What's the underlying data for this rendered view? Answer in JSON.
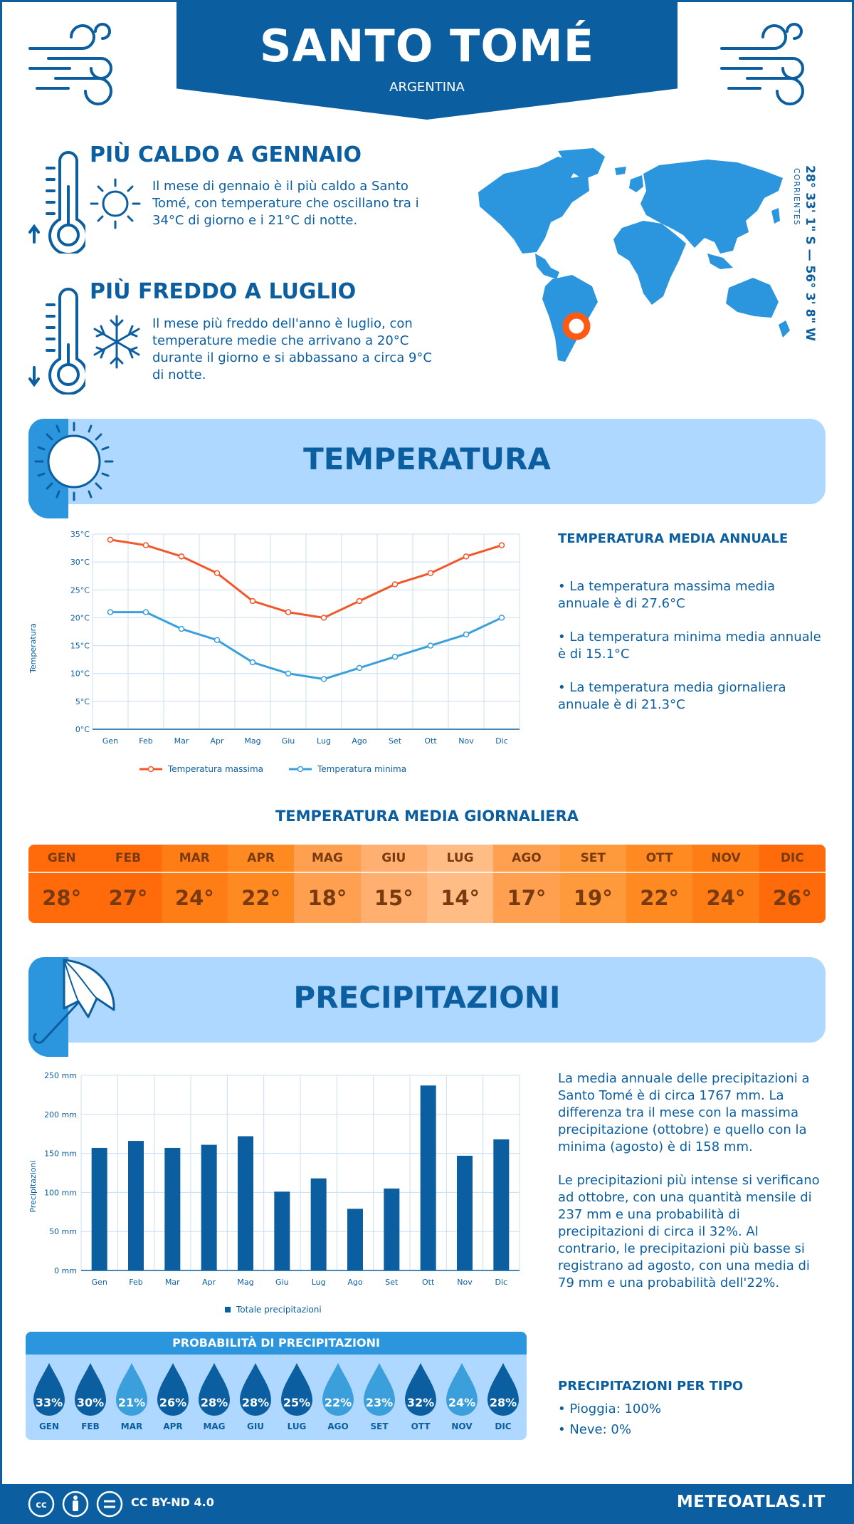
{
  "header": {
    "city": "SANTO TOMÉ",
    "country": "ARGENTINA"
  },
  "coordinates": {
    "text": "28° 33' 1\" S — 56° 3' 8\" W",
    "region": "CORRIENTES"
  },
  "highlights": {
    "hottest": {
      "title": "PIÙ CALDO A GENNAIO",
      "text": "Il mese di gennaio è il più caldo a Santo Tomé, con temperature che oscillano tra i 34°C di giorno e i 21°C di notte."
    },
    "coldest": {
      "title": "PIÙ FREDDO A LUGLIO",
      "text": "Il mese più freddo dell'anno è luglio, con temperature medie che arrivano a 20°C durante il giorno e si abbassano a circa 9°C di notte."
    }
  },
  "temperature": {
    "section_title": "TEMPERATURA",
    "side_title": "TEMPERATURA MEDIA ANNUALE",
    "bullets": [
      "• La temperatura massima media annuale è di 27.6°C",
      "• La temperatura minima media annuale è di 15.1°C",
      "• La temperatura media giornaliera annuale è di 21.3°C"
    ]
  },
  "months": [
    "Gen",
    "Feb",
    "Mar",
    "Apr",
    "Mag",
    "Giu",
    "Lug",
    "Ago",
    "Set",
    "Ott",
    "Nov",
    "Dic"
  ],
  "months_upper": [
    "GEN",
    "FEB",
    "MAR",
    "APR",
    "MAG",
    "GIU",
    "LUG",
    "AGO",
    "SET",
    "OTT",
    "NOV",
    "DIC"
  ],
  "chart_data": [
    {
      "type": "line",
      "categories": [
        "Gen",
        "Feb",
        "Mar",
        "Apr",
        "Mag",
        "Giu",
        "Lug",
        "Ago",
        "Set",
        "Ott",
        "Nov",
        "Dic"
      ],
      "series": [
        {
          "name": "Temperatura massima",
          "values": [
            34,
            33,
            31,
            28,
            23,
            21,
            20,
            23,
            26,
            28,
            31,
            33
          ],
          "color": "#f2562b"
        },
        {
          "name": "Temperatura minima",
          "values": [
            21,
            21,
            18,
            16,
            12,
            10,
            9,
            11,
            13,
            15,
            17,
            20
          ],
          "color": "#3a9fdb"
        }
      ],
      "ylabel": "Temperatura",
      "ylim": [
        0,
        35
      ],
      "yticks": [
        "0°C",
        "5°C",
        "10°C",
        "15°C",
        "20°C",
        "25°C",
        "30°C",
        "35°C"
      ],
      "grid": true,
      "legend": "bottom"
    },
    {
      "type": "bar",
      "categories": [
        "Gen",
        "Feb",
        "Mar",
        "Apr",
        "Mag",
        "Giu",
        "Lug",
        "Ago",
        "Set",
        "Ott",
        "Nov",
        "Dic"
      ],
      "series": [
        {
          "name": "Totale precipitazioni",
          "values": [
            157,
            166,
            157,
            161,
            172,
            101,
            118,
            79,
            105,
            237,
            147,
            168
          ],
          "color": "#0b5e9f"
        }
      ],
      "ylabel": "Precipitazioni",
      "ylim": [
        0,
        250
      ],
      "yticks": [
        "0 mm",
        "50 mm",
        "100 mm",
        "150 mm",
        "200 mm",
        "250 mm"
      ],
      "grid": true,
      "legend": "bottom"
    }
  ],
  "daily": {
    "title": "TEMPERATURA MEDIA GIORNALIERA",
    "values": [
      "28°",
      "27°",
      "24°",
      "22°",
      "18°",
      "15°",
      "14°",
      "17°",
      "19°",
      "22°",
      "24°",
      "26°"
    ],
    "colors": [
      "#ff6a0a",
      "#ff6a0a",
      "#ff7d14",
      "#ff8a22",
      "#ffa050",
      "#ffb070",
      "#ffbd85",
      "#ffa050",
      "#ff9a3c",
      "#ff8a22",
      "#ff7d14",
      "#ff6a0a"
    ]
  },
  "precipitation": {
    "section_title": "PRECIPITAZIONI",
    "paragraph1": "La media annuale delle precipitazioni a Santo Tomé è di circa 1767 mm. La differenza tra il mese con la massima precipitazione (ottobre) e quello con la minima (agosto) è di 158 mm.",
    "paragraph2": "Le precipitazioni più intense si verificano ad ottobre, con una quantità mensile di 237 mm e una probabilità di precipitazioni di circa il 32%. Al contrario, le precipitazioni più basse si registrano ad agosto, con una media di 79 mm e una probabilità dell'22%."
  },
  "probability": {
    "title": "PROBABILITÀ DI PRECIPITAZIONI",
    "values": [
      "33%",
      "30%",
      "21%",
      "26%",
      "28%",
      "28%",
      "25%",
      "22%",
      "23%",
      "32%",
      "24%",
      "28%"
    ],
    "colors": [
      "#0b5e9f",
      "#0b5e9f",
      "#3a9fdb",
      "#0b5e9f",
      "#0b5e9f",
      "#0b5e9f",
      "#0b5e9f",
      "#3a9fdb",
      "#3a9fdb",
      "#0b5e9f",
      "#3a9fdb",
      "#0b5e9f"
    ]
  },
  "precip_type": {
    "title": "PRECIPITAZIONI PER TIPO",
    "rain": "• Pioggia: 100%",
    "snow": "• Neve: 0%"
  },
  "footer": {
    "license": "CC BY-ND 4.0",
    "site": "METEOATLAS.IT"
  }
}
